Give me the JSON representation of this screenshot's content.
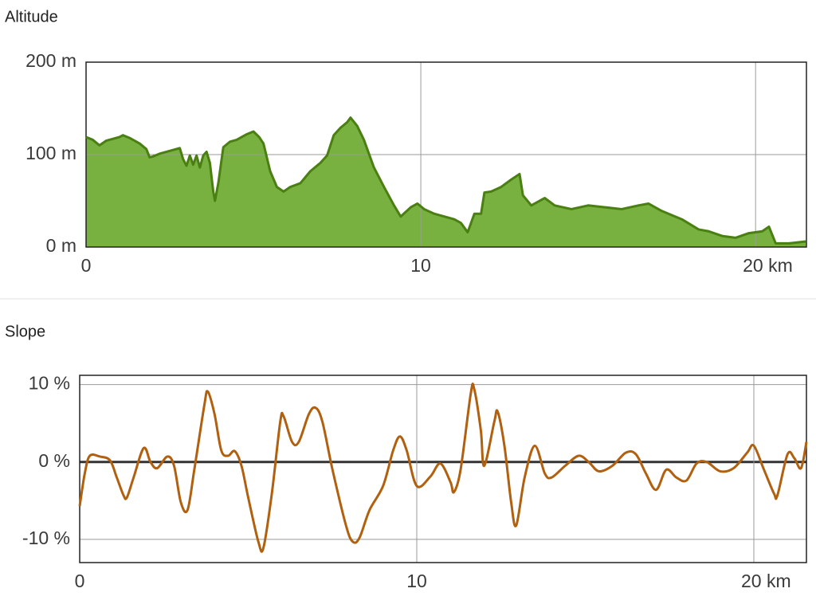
{
  "chart_data": [
    {
      "type": "area",
      "title": "Altitude",
      "color": "#78b140",
      "line_color": "#4a7f12",
      "x": [
        0,
        0.2,
        0.4,
        0.6,
        1.0,
        1.1,
        1.3,
        1.6,
        1.8,
        1.9,
        2.0,
        2.2,
        2.6,
        2.8,
        2.9,
        3.0,
        3.1,
        3.2,
        3.3,
        3.4,
        3.5,
        3.6,
        3.7,
        3.8,
        3.85,
        3.95,
        4.1,
        4.3,
        4.5,
        4.8,
        5.0,
        5.17,
        5.3,
        5.5,
        5.7,
        5.9,
        6.1,
        6.4,
        6.7,
        7.0,
        7.2,
        7.4,
        7.6,
        7.8,
        7.9,
        8.1,
        8.3,
        8.6,
        8.9,
        9.2,
        9.4,
        9.7,
        9.9,
        10.1,
        10.4,
        10.7,
        11.0,
        11.2,
        11.4,
        11.6,
        11.8,
        11.9,
        12.1,
        12.4,
        12.7,
        12.95,
        13.05,
        13.3,
        13.7,
        14.0,
        14.5,
        15.0,
        15.5,
        16.0,
        16.5,
        16.8,
        17.2,
        17.8,
        18.3,
        18.6,
        19.0,
        19.4,
        19.8,
        20.2,
        20.4,
        20.6,
        21.0,
        21.5
      ],
      "values": [
        119,
        116,
        110,
        115,
        119,
        121,
        118,
        112,
        106,
        97,
        98,
        101,
        105,
        107,
        95,
        88,
        99,
        89,
        99,
        86,
        99,
        103,
        91,
        60,
        50,
        69,
        108,
        114,
        116,
        122,
        125,
        119,
        112,
        82,
        65,
        60,
        65,
        69,
        82,
        91,
        99,
        121,
        129,
        135,
        140,
        131,
        116,
        86,
        65,
        45,
        33,
        43,
        47,
        41,
        36,
        33,
        30,
        26,
        16,
        36,
        36,
        59,
        60,
        65,
        73,
        79,
        56,
        45,
        53,
        45,
        41,
        45,
        43,
        41,
        45,
        47,
        39,
        30,
        19,
        17,
        12,
        10,
        15,
        17,
        22,
        4,
        4,
        6
      ],
      "xlim": [
        0,
        21.52
      ],
      "ylim": [
        0,
        200
      ],
      "xticks": [
        0,
        10,
        {
          "value": 20,
          "label": "20 km"
        }
      ],
      "yticks": [
        {
          "value": 0,
          "label": "0 m"
        },
        {
          "value": 100,
          "label": "100 m"
        },
        {
          "value": 200,
          "label": "200 m"
        }
      ],
      "grid": true
    },
    {
      "type": "line",
      "title": "Slope",
      "color": "#b0600f",
      "x": [
        0,
        0.15,
        0.3,
        0.6,
        0.9,
        1.1,
        1.3,
        1.4,
        1.6,
        1.9,
        2.1,
        2.3,
        2.6,
        2.8,
        3.0,
        3.2,
        3.4,
        3.7,
        3.8,
        4.0,
        4.2,
        4.4,
        4.6,
        4.8,
        5.0,
        5.3,
        5.45,
        5.7,
        5.95,
        6.05,
        6.3,
        6.5,
        6.8,
        7.0,
        7.2,
        7.5,
        7.9,
        8.1,
        8.3,
        8.6,
        9.0,
        9.3,
        9.5,
        9.7,
        10.0,
        10.4,
        10.7,
        11.0,
        11.1,
        11.3,
        11.6,
        11.7,
        11.9,
        12.0,
        12.3,
        12.4,
        12.6,
        12.8,
        12.95,
        13.2,
        13.5,
        13.8,
        14.0,
        14.4,
        14.8,
        15.1,
        15.4,
        15.8,
        16.2,
        16.5,
        16.8,
        17.1,
        17.4,
        17.7,
        18.0,
        18.3,
        18.6,
        19.0,
        19.4,
        19.8,
        20.0,
        20.3,
        20.6,
        20.7,
        21.0,
        21.2,
        21.4,
        21.56
      ],
      "values": [
        -5.7,
        -1.5,
        0.8,
        0.7,
        0.2,
        -2,
        -4.3,
        -4.6,
        -2,
        1.8,
        0,
        -0.8,
        0.7,
        -0.5,
        -5.2,
        -6.2,
        -1,
        7.4,
        9.1,
        6.2,
        1.5,
        0.8,
        1.4,
        -0.5,
        -4.6,
        -10.3,
        -11.1,
        -4.1,
        5.2,
        5.9,
        2.6,
        2.6,
        6.2,
        7,
        5.2,
        -1,
        -8.2,
        -10.3,
        -9.8,
        -6.2,
        -3.1,
        1.5,
        3.3,
        1.5,
        -3.1,
        -1.9,
        -0.2,
        -2.6,
        -3.9,
        -1,
        8.8,
        9.5,
        4.1,
        -0.5,
        5.2,
        6.5,
        2.1,
        -5.2,
        -8.2,
        -2,
        2.1,
        -1.5,
        -2,
        -0.5,
        0.8,
        0,
        -1.2,
        -0.5,
        1.2,
        1,
        -1.5,
        -3.6,
        -1,
        -2,
        -2.4,
        -0.2,
        0,
        -1.2,
        -0.8,
        1.2,
        2.1,
        -1,
        -4.1,
        -4.3,
        1,
        0.5,
        -0.8,
        2.6
      ],
      "xlim": [
        0,
        21.56
      ],
      "ylim": [
        -13,
        11.2
      ],
      "xticks": [
        0,
        10,
        {
          "value": 20,
          "label": "20 km"
        }
      ],
      "yticks": [
        {
          "value": -10,
          "label": "-10 %"
        },
        {
          "value": 0,
          "label": "0 %"
        },
        {
          "value": 10,
          "label": "10 %"
        }
      ],
      "grid": true,
      "zero_line": true
    }
  ]
}
